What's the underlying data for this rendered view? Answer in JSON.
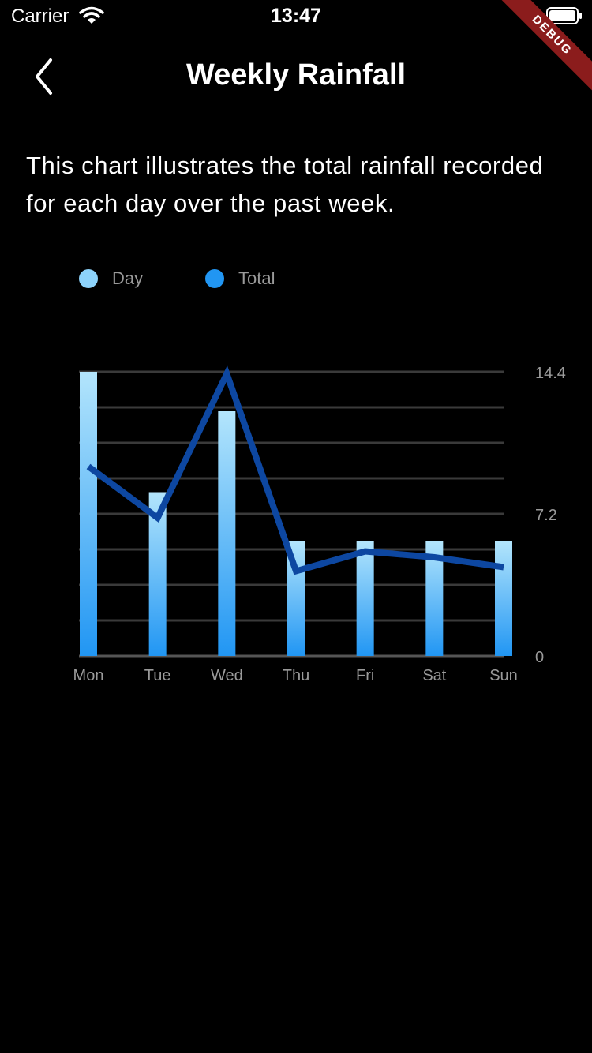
{
  "status_bar": {
    "carrier": "Carrier",
    "time": "13:47"
  },
  "debug_banner": "DEBUG",
  "nav": {
    "title": "Weekly Rainfall",
    "back_icon": "chevron-left-icon"
  },
  "description": "This chart illustrates the total rainfall recorded for each day over the past week.",
  "legend": [
    {
      "label": "Day",
      "color": "#8dd3fb"
    },
    {
      "label": "Total",
      "color": "#2196f3"
    }
  ],
  "chart_data": {
    "type": "bar",
    "categories": [
      "Mon",
      "Tue",
      "Wed",
      "Thu",
      "Fri",
      "Sat",
      "Sun"
    ],
    "series": [
      {
        "name": "Day",
        "type": "bar",
        "values": [
          14.4,
          8.3,
          12.4,
          5.8,
          5.8,
          5.8,
          5.8
        ],
        "gradient": [
          "#b3e5fc",
          "#2196f3"
        ]
      },
      {
        "name": "Total",
        "type": "line",
        "values": [
          9.6,
          7.0,
          14.3,
          4.3,
          5.3,
          5.0,
          4.5
        ],
        "color": "#0d47a1"
      }
    ],
    "ylim": [
      0,
      14.4
    ],
    "ytick_labels": [
      "14.4",
      "7.2",
      "0"
    ],
    "grid": true,
    "gridline_count": 8,
    "y_axis_side": "right",
    "legend_position": "top-left"
  }
}
